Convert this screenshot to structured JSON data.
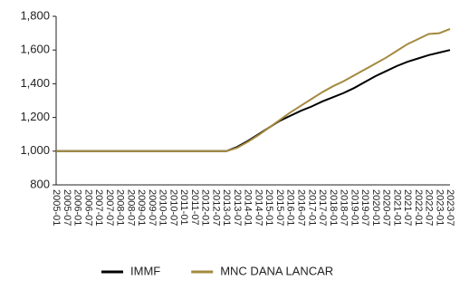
{
  "chart_data": {
    "type": "line",
    "categories": [
      "2005-01",
      "2005-07",
      "2006-01",
      "2006-07",
      "2007-01",
      "2007-07",
      "2008-01",
      "2008-07",
      "2009-01",
      "2009-07",
      "2010-01",
      "2010-07",
      "2011-01",
      "2011-07",
      "2012-01",
      "2012-07",
      "2013-01",
      "2013-07",
      "2014-01",
      "2014-07",
      "2015-01",
      "2015-07",
      "2016-01",
      "2016-07",
      "2017-01",
      "2017-07",
      "2018-01",
      "2018-07",
      "2019-01",
      "2019-07",
      "2020-01",
      "2020-07",
      "2021-01",
      "2021-07",
      "2022-01",
      "2022-07",
      "2023-01",
      "2023-07"
    ],
    "series": [
      {
        "name": "IMMF",
        "color": "#000000",
        "values": [
          1000,
          1000,
          1000,
          1000,
          1000,
          1000,
          1000,
          1000,
          1000,
          1000,
          1000,
          1000,
          1000,
          1000,
          1000,
          1000,
          1000,
          1025,
          1060,
          1100,
          1140,
          1180,
          1210,
          1240,
          1265,
          1295,
          1320,
          1345,
          1375,
          1410,
          1445,
          1475,
          1505,
          1530,
          1550,
          1570,
          1585,
          1600
        ]
      },
      {
        "name": "MNC DANA LANCAR",
        "color": "#a38a3f",
        "values": [
          1000,
          1000,
          1000,
          1000,
          1000,
          1000,
          1000,
          1000,
          1000,
          1000,
          1000,
          1000,
          1000,
          1000,
          1000,
          1000,
          1000,
          1020,
          1055,
          1095,
          1140,
          1185,
          1230,
          1270,
          1310,
          1350,
          1385,
          1415,
          1450,
          1485,
          1520,
          1555,
          1595,
          1635,
          1665,
          1695,
          1700,
          1725
        ]
      }
    ],
    "ylim": [
      800,
      1800
    ],
    "yticks": [
      800,
      {
        "value": 1000,
        "label": "1,000"
      },
      {
        "value": 1200,
        "label": "1,200"
      },
      {
        "value": 1400,
        "label": "1,400"
      },
      {
        "value": 1600,
        "label": "1,600"
      },
      {
        "value": 1800,
        "label": "1,800"
      }
    ],
    "grid": false,
    "legend": "bottom"
  }
}
